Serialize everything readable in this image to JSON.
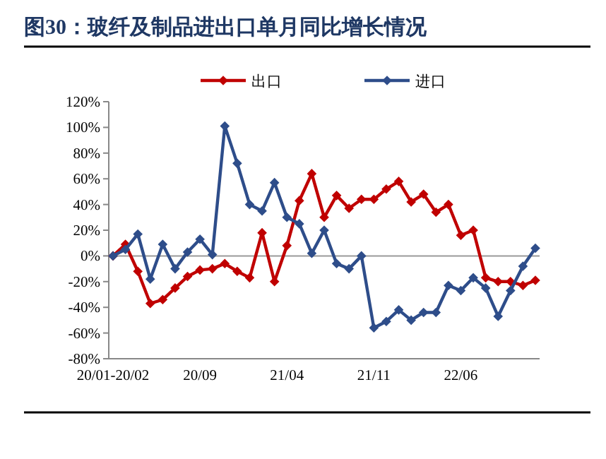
{
  "chart_data": {
    "type": "line",
    "title": "图30：玻纤及制品进出口单月同比增长情况",
    "categories": [
      "20/01-20/02",
      null,
      null,
      null,
      null,
      null,
      null,
      "20/09",
      null,
      null,
      null,
      null,
      null,
      null,
      "21/04",
      null,
      null,
      null,
      null,
      null,
      null,
      "21/11",
      null,
      null,
      null,
      null,
      null,
      null,
      "22/06",
      null,
      null,
      null,
      null,
      null,
      null
    ],
    "series": [
      {
        "name": "出口",
        "color": "#c00000",
        "values": [
          0,
          9,
          -12,
          -37,
          -34,
          -25,
          -16,
          -11,
          -10,
          -6,
          -12,
          -17,
          18,
          -20,
          8,
          43,
          64,
          30,
          47,
          37,
          44,
          44,
          52,
          58,
          42,
          48,
          34,
          40,
          16,
          20,
          -17,
          -20,
          -20,
          -23,
          -19
        ]
      },
      {
        "name": "进口",
        "color": "#2e4d8a",
        "values": [
          0,
          5,
          17,
          -18,
          9,
          -10,
          3,
          13,
          1,
          101,
          72,
          40,
          35,
          57,
          30,
          25,
          2,
          20,
          -6,
          -10,
          0,
          -56,
          -51,
          -42,
          -50,
          -44,
          -44,
          -23,
          -27,
          -17,
          -25,
          -47,
          -27,
          -8,
          6
        ]
      }
    ],
    "ylim": [
      -80,
      120
    ],
    "yticks": [
      {
        "value": -80,
        "label": "-80%"
      },
      {
        "value": -60,
        "label": "-60%"
      },
      {
        "value": -40,
        "label": "-40%"
      },
      {
        "value": -20,
        "label": "-20%"
      },
      {
        "value": 0,
        "label": "0%"
      },
      {
        "value": 20,
        "label": "20%"
      },
      {
        "value": 40,
        "label": "40%"
      },
      {
        "value": 60,
        "label": "60%"
      },
      {
        "value": 80,
        "label": "80%"
      },
      {
        "value": 100,
        "label": "100%"
      },
      {
        "value": 120,
        "label": "120%"
      }
    ],
    "ref_lines": [
      {
        "axis": "y",
        "value": 0,
        "color": "#999999"
      }
    ],
    "marker": "diamond",
    "legend": "top"
  }
}
